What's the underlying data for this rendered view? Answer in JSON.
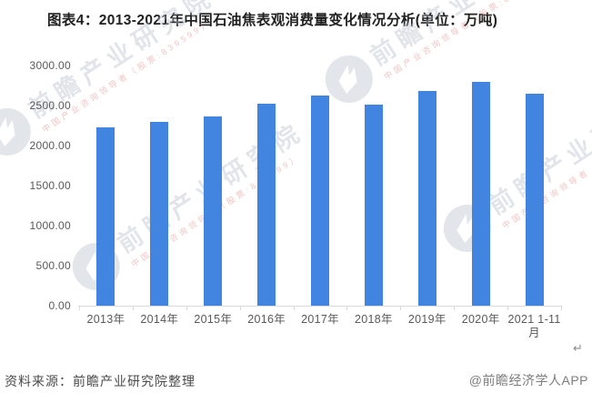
{
  "title": "图表4：2013-2021年中国石油焦表观消费量变化情况分析(单位：万吨)",
  "chart_data": {
    "type": "bar",
    "categories": [
      "2013年",
      "2014年",
      "2015年",
      "2016年",
      "2017年",
      "2018年",
      "2019年",
      "2020年",
      "2021 1-11月"
    ],
    "values": [
      2230,
      2298,
      2360,
      2526,
      2621,
      2514,
      2686,
      2797,
      2645
    ],
    "title": "图表4：2013-2021年中国石油焦表观消费量变化情况分析(单位：万吨)",
    "xlabel": "",
    "ylabel": "",
    "unit": "万吨",
    "ylim": [
      0,
      3000
    ],
    "y_ticks": [
      "0.00",
      "500.00",
      "1000.00",
      "1500.00",
      "2000.00",
      "2500.00",
      "3000.00"
    ],
    "bar_color": "#4285e1",
    "grid": false,
    "legend": "none"
  },
  "footer": {
    "source": "资料来源：前瞻产业研究院整理",
    "credit": "@前瞻经济学人APP"
  },
  "watermark": {
    "logo_text": "前瞻产业研究院",
    "tagline": "中国产业咨询领导者（股票:839599）"
  },
  "icons": {
    "return_mark": "↵"
  }
}
